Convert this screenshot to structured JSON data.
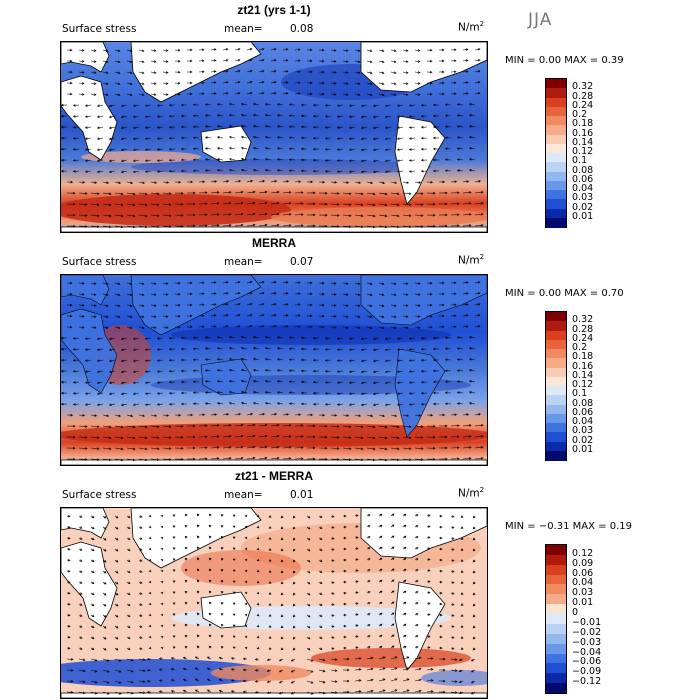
{
  "season": "JJA",
  "panels": [
    {
      "id": "model",
      "title": "zt21 (yrs 1-1)",
      "field": "Surface stress",
      "mean_label": "mean=",
      "mean": "0.08",
      "unit": "N/m",
      "unit_exp": "2",
      "min_label": "MIN =",
      "min": "0.00",
      "max_label": "MAX =",
      "max": "0.39",
      "colorbar": [
        "0.32",
        "0.28",
        "0.24",
        "0.2",
        "0.18",
        "0.16",
        "0.14",
        "0.12",
        "0.1",
        "0.08",
        "0.06",
        "0.04",
        "0.03",
        "0.02",
        "0.01"
      ],
      "colors": [
        "#7f0000",
        "#b01b10",
        "#d94020",
        "#e8643a",
        "#f08a60",
        "#f5ab8a",
        "#f8cbb4",
        "#fbe7da",
        "#dde9f7",
        "#bcd2f2",
        "#93b8ee",
        "#6a98e8",
        "#3f73e0",
        "#1f4fd4",
        "#0b2aa8",
        "#000a6e"
      ]
    },
    {
      "id": "obs",
      "title": "MERRA",
      "field": "Surface stress",
      "mean_label": "mean=",
      "mean": "0.07",
      "unit": "N/m",
      "unit_exp": "2",
      "min_label": "MIN =",
      "min": "0.00",
      "max_label": "MAX =",
      "max": "0.70",
      "colorbar": [
        "0.32",
        "0.28",
        "0.24",
        "0.2",
        "0.18",
        "0.16",
        "0.14",
        "0.12",
        "0.1",
        "0.08",
        "0.06",
        "0.04",
        "0.03",
        "0.02",
        "0.01"
      ],
      "colors": [
        "#7f0000",
        "#b01b10",
        "#d94020",
        "#e8643a",
        "#f08a60",
        "#f5ab8a",
        "#f8cbb4",
        "#fbe7da",
        "#dde9f7",
        "#bcd2f2",
        "#93b8ee",
        "#6a98e8",
        "#3f73e0",
        "#1f4fd4",
        "#0b2aa8",
        "#000a6e"
      ]
    },
    {
      "id": "diff",
      "title": "zt21 - MERRA",
      "field": "Surface stress",
      "mean_label": "mean=",
      "mean": "0.01",
      "unit": "N/m",
      "unit_exp": "2",
      "min_label": "MIN =",
      "min": "−0.31",
      "max_label": "MAX =",
      "max": "0.19",
      "colorbar": [
        "0.12",
        "0.09",
        "0.06",
        "0.04",
        "0.03",
        "0.01",
        "0",
        "−0.01",
        "−0.02",
        "−0.03",
        "−0.04",
        "−0.06",
        "−0.09",
        "−0.12"
      ],
      "colors": [
        "#7f0000",
        "#b01b10",
        "#d94020",
        "#e8643a",
        "#f08a60",
        "#f5ab8a",
        "#fbe3d4",
        "#dde9f7",
        "#bcd2f2",
        "#93b8ee",
        "#6a98e8",
        "#3f73e0",
        "#1f4fd4",
        "#0b2aa8",
        "#000a6e"
      ]
    }
  ]
}
